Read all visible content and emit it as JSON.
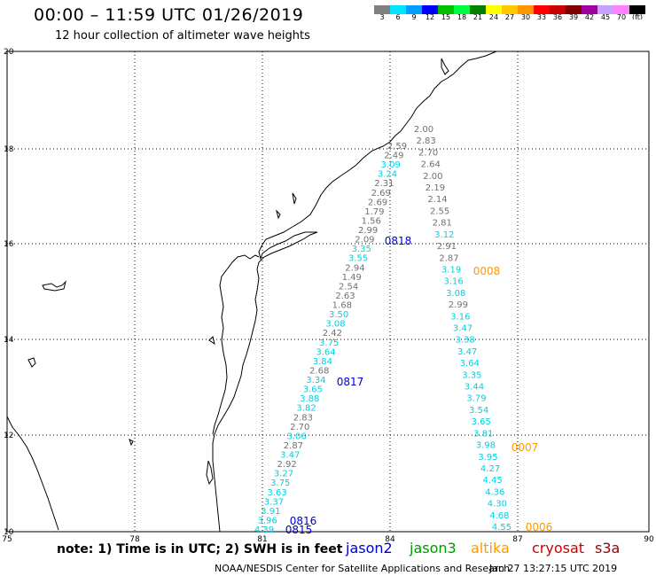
{
  "title": "00:00 – 11:59 UTC 01/26/2019",
  "subtitle": "12 hour collection of altimeter wave heights",
  "colorbar": {
    "colors": [
      "#808080",
      "#00e5ff",
      "#00a0ff",
      "#0000ff",
      "#00c000",
      "#00ff40",
      "#008000",
      "#ffff00",
      "#ffc800",
      "#ff9600",
      "#ff0000",
      "#c80000",
      "#800000",
      "#a000a0",
      "#c8a0ff",
      "#ff80ff",
      "#000000"
    ],
    "labels": [
      "3",
      "6",
      "9",
      "12",
      "15",
      "18",
      "21",
      "24",
      "27",
      "30",
      "33",
      "36",
      "39",
      "42",
      "45",
      "70",
      "(ft)"
    ]
  },
  "axes": {
    "lon_ticks": [
      "75",
      "78",
      "81",
      "84",
      "87",
      "90"
    ],
    "lat_ticks": [
      "10",
      "12",
      "14",
      "16",
      "18",
      "20"
    ]
  },
  "satellite_colors": {
    "jason2": "#0000cc",
    "jason3": "#009900",
    "altika": "#ff9900",
    "cryosat": "#cc0000",
    "s3a": "#990000",
    "gray": "#707070",
    "cyan": "#00d0e0"
  },
  "tracks": {
    "left": [
      {
        "v": "2.59",
        "c": "gray"
      },
      {
        "v": "2.49",
        "c": "gray"
      },
      {
        "v": "3.09",
        "c": "cyan"
      },
      {
        "v": "3.24",
        "c": "cyan"
      },
      {
        "v": "2.31",
        "c": "gray"
      },
      {
        "v": "2.69",
        "c": "gray"
      },
      {
        "v": "2.69",
        "c": "gray"
      },
      {
        "v": "1.79",
        "c": "gray"
      },
      {
        "v": "1.56",
        "c": "gray"
      },
      {
        "v": "2.99",
        "c": "gray"
      },
      {
        "v": "2.09",
        "c": "gray"
      },
      {
        "v": "3.35",
        "c": "cyan"
      },
      {
        "v": "3.55",
        "c": "cyan"
      },
      {
        "v": "2.94",
        "c": "gray"
      },
      {
        "v": "1.49",
        "c": "gray"
      },
      {
        "v": "2.54",
        "c": "gray"
      },
      {
        "v": "2.63",
        "c": "gray"
      },
      {
        "v": "1.68",
        "c": "gray"
      },
      {
        "v": "3.50",
        "c": "cyan"
      },
      {
        "v": "3.08",
        "c": "cyan"
      },
      {
        "v": "2.42",
        "c": "gray"
      },
      {
        "v": "3.75",
        "c": "cyan"
      },
      {
        "v": "3.64",
        "c": "cyan"
      },
      {
        "v": "3.84",
        "c": "cyan"
      },
      {
        "v": "2.68",
        "c": "gray"
      },
      {
        "v": "3.34",
        "c": "cyan"
      },
      {
        "v": "3.65",
        "c": "cyan"
      },
      {
        "v": "3.88",
        "c": "cyan"
      },
      {
        "v": "3.82",
        "c": "cyan"
      },
      {
        "v": "2.83",
        "c": "gray"
      },
      {
        "v": "2.70",
        "c": "gray"
      },
      {
        "v": "3.06",
        "c": "cyan"
      },
      {
        "v": "2.87",
        "c": "gray"
      },
      {
        "v": "3.47",
        "c": "cyan"
      },
      {
        "v": "2.92",
        "c": "gray"
      },
      {
        "v": "3.27",
        "c": "cyan"
      },
      {
        "v": "3.75",
        "c": "cyan"
      },
      {
        "v": "3.63",
        "c": "cyan"
      },
      {
        "v": "3.37",
        "c": "cyan"
      },
      {
        "v": "3.91",
        "c": "cyan"
      },
      {
        "v": "3.96",
        "c": "cyan"
      },
      {
        "v": "4.39",
        "c": "cyan"
      }
    ],
    "right": [
      {
        "v": "2.00",
        "c": "gray"
      },
      {
        "v": "2.83",
        "c": "gray"
      },
      {
        "v": "2.70",
        "c": "gray"
      },
      {
        "v": "2.64",
        "c": "gray"
      },
      {
        "v": "2.00",
        "c": "gray"
      },
      {
        "v": "2.19",
        "c": "gray"
      },
      {
        "v": "2.14",
        "c": "gray"
      },
      {
        "v": "2.55",
        "c": "gray"
      },
      {
        "v": "2.81",
        "c": "gray"
      },
      {
        "v": "3.12",
        "c": "cyan"
      },
      {
        "v": "2.91",
        "c": "gray"
      },
      {
        "v": "2.87",
        "c": "gray"
      },
      {
        "v": "3.19",
        "c": "cyan"
      },
      {
        "v": "3.16",
        "c": "cyan"
      },
      {
        "v": "3.08",
        "c": "cyan"
      },
      {
        "v": "2.99",
        "c": "gray"
      },
      {
        "v": "3.16",
        "c": "cyan"
      },
      {
        "v": "3.47",
        "c": "cyan"
      },
      {
        "v": "3.38",
        "c": "cyan"
      },
      {
        "v": "3.47",
        "c": "cyan"
      },
      {
        "v": "3.64",
        "c": "cyan"
      },
      {
        "v": "3.35",
        "c": "cyan"
      },
      {
        "v": "3.44",
        "c": "cyan"
      },
      {
        "v": "3.79",
        "c": "cyan"
      },
      {
        "v": "3.54",
        "c": "cyan"
      },
      {
        "v": "3.65",
        "c": "cyan"
      },
      {
        "v": "3.81",
        "c": "cyan"
      },
      {
        "v": "3.98",
        "c": "cyan"
      },
      {
        "v": "3.95",
        "c": "cyan"
      },
      {
        "v": "4.27",
        "c": "cyan"
      },
      {
        "v": "4.45",
        "c": "cyan"
      },
      {
        "v": "4.36",
        "c": "cyan"
      },
      {
        "v": "4.30",
        "c": "cyan"
      },
      {
        "v": "4.68",
        "c": "cyan"
      },
      {
        "v": "4.55",
        "c": "cyan"
      }
    ]
  },
  "time_labels": [
    {
      "text": "0818",
      "sat": "jason2"
    },
    {
      "text": "0817",
      "sat": "jason2"
    },
    {
      "text": "0816",
      "sat": "jason2"
    },
    {
      "text": "0815",
      "sat": "jason2"
    },
    {
      "text": "0008",
      "sat": "altika"
    },
    {
      "text": "0007",
      "sat": "altika"
    },
    {
      "text": "0006",
      "sat": "altika"
    }
  ],
  "note": "note: 1) Time is in UTC; 2) SWH is in feet",
  "legend": [
    {
      "name": "jason2",
      "sat": "jason2"
    },
    {
      "name": "jason3",
      "sat": "jason3"
    },
    {
      "name": "altika",
      "sat": "altika"
    },
    {
      "name": "cryosat",
      "sat": "cryosat"
    },
    {
      "name": "s3a",
      "sat": "s3a"
    }
  ],
  "credit": "NOAA/NESDIS Center for Satellite Applications and Research",
  "timestamp": "Jan 27 13:27:15 UTC 2019"
}
